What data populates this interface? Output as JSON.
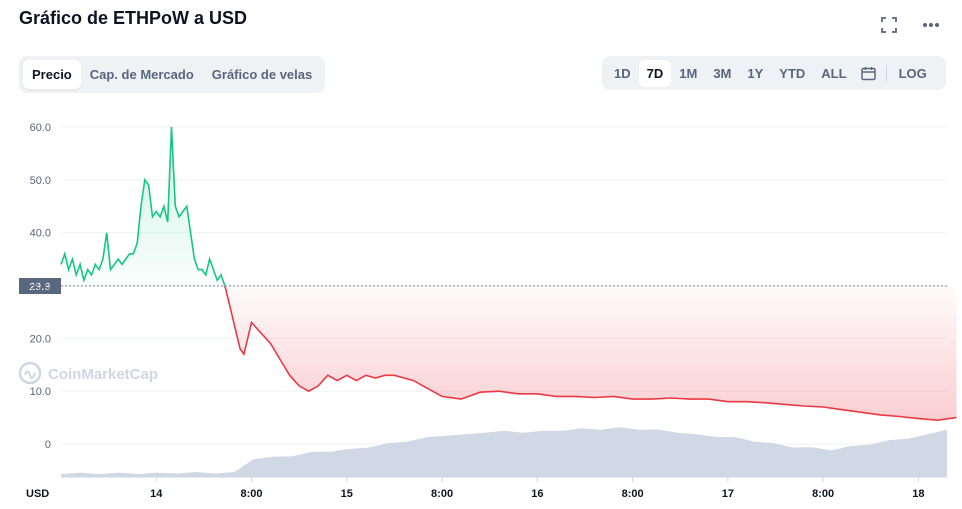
{
  "header": {
    "title": "Gráfico de ETHPoW a USD"
  },
  "tabs": [
    {
      "label": "Precio",
      "active": true
    },
    {
      "label": "Cap. de Mercado",
      "active": false
    },
    {
      "label": "Gráfico de velas",
      "active": false
    }
  ],
  "ranges": [
    {
      "label": "1D",
      "active": false
    },
    {
      "label": "7D",
      "active": true
    },
    {
      "label": "1M",
      "active": false
    },
    {
      "label": "3M",
      "active": false
    },
    {
      "label": "1Y",
      "active": false
    },
    {
      "label": "YTD",
      "active": false
    },
    {
      "label": "ALL",
      "active": false
    }
  ],
  "scale_label": "LOG",
  "icons": {
    "fullscreen": "fullscreen-icon",
    "more": "more-options-icon",
    "calendar": "calendar-icon"
  },
  "watermark": "CoinMarketCap",
  "colors": {
    "up": "#16c784",
    "down": "#ea3943",
    "volume": "#cfd6e4",
    "grid": "#eff2f5"
  },
  "chart_data": {
    "type": "line",
    "series": [
      {
        "x": [
          0,
          0.02,
          0.04,
          0.06,
          0.08,
          0.1,
          0.12,
          0.14,
          0.16,
          0.18,
          0.2,
          0.22,
          0.24,
          0.26,
          0.28,
          0.3,
          0.32,
          0.34,
          0.36,
          0.38,
          0.4,
          0.42,
          0.44,
          0.46,
          0.48,
          0.5,
          0.52,
          0.54,
          0.56,
          0.58,
          0.6,
          0.62,
          0.64,
          0.66,
          0.68,
          0.7,
          0.72,
          0.74,
          0.76,
          0.78,
          0.8,
          0.82,
          0.84,
          0.86,
          0.88,
          0.9,
          0.92,
          0.94,
          0.96,
          0.98,
          1.0,
          1.05,
          1.1,
          1.15,
          1.2,
          1.25,
          1.3,
          1.35,
          1.4,
          1.45,
          1.5,
          1.55,
          1.6,
          1.65,
          1.7,
          1.75,
          1.8,
          1.85,
          1.9,
          1.95,
          2.0,
          2.1,
          2.2,
          2.3,
          2.4,
          2.5,
          2.6,
          2.7,
          2.8,
          2.9,
          3.0,
          3.1,
          3.2,
          3.3,
          3.4,
          3.5,
          3.6,
          3.7,
          3.8,
          3.9,
          4.0,
          4.1,
          4.2,
          4.3,
          4.4,
          4.5,
          4.6,
          4.7
        ],
        "values": [
          34,
          36,
          33,
          35,
          32,
          34,
          31,
          33,
          32,
          34,
          33,
          35,
          40,
          33,
          34,
          35,
          34,
          35,
          36,
          36,
          38,
          45,
          50,
          49,
          43,
          44,
          43,
          45,
          42,
          60,
          45,
          43,
          44,
          45,
          40,
          35,
          33,
          33,
          32,
          35,
          33,
          31,
          32,
          29.9,
          27,
          24,
          21,
          18,
          17,
          20,
          23,
          21,
          19,
          16,
          13,
          11,
          10,
          11,
          13,
          12,
          13,
          12,
          13,
          12.5,
          13,
          13,
          12.5,
          12,
          11,
          10,
          9,
          8.5,
          9.8,
          10,
          9.5,
          9.5,
          9,
          9,
          8.8,
          9,
          8.5,
          8.5,
          8.7,
          8.5,
          8.5,
          8,
          8,
          7.8,
          7.5,
          7.2,
          7,
          6.5,
          6,
          5.5,
          5.2,
          4.8,
          4.5,
          5
        ]
      }
    ],
    "volume": [
      0.5,
      0.5,
      0.5,
      0.5,
      0.5,
      0.5,
      0.6,
      0.6,
      0.6,
      0.6,
      3,
      3.2,
      3.5,
      4,
      4.3,
      4.5,
      5,
      5.5,
      6,
      6.5,
      7,
      7,
      7.5,
      7.6,
      7.5,
      7.6,
      7.8,
      8,
      8,
      8.2,
      8,
      7.8,
      7.5,
      7,
      6.8,
      6.5,
      6,
      5.5,
      5,
      4.8,
      4.5,
      5,
      5.5,
      6,
      6.5,
      7,
      8
    ],
    "reference_value": 29.9,
    "yticks": [
      "0",
      "10.0",
      "20.0",
      "30.0",
      "40.0",
      "50.0",
      "60.0"
    ],
    "ylim": [
      0,
      65
    ],
    "xticks": [
      {
        "x": 0.5,
        "label": "14"
      },
      {
        "x": 1.0,
        "label": "8:00"
      },
      {
        "x": 1.5,
        "label": "15"
      },
      {
        "x": 2.0,
        "label": "8:00"
      },
      {
        "x": 2.5,
        "label": "16"
      },
      {
        "x": 3.0,
        "label": "8:00"
      },
      {
        "x": 3.5,
        "label": "17"
      },
      {
        "x": 4.0,
        "label": "8:00"
      },
      {
        "x": 4.5,
        "label": "18"
      }
    ],
    "xlim": [
      0,
      4.65
    ],
    "currency_label": "USD"
  }
}
